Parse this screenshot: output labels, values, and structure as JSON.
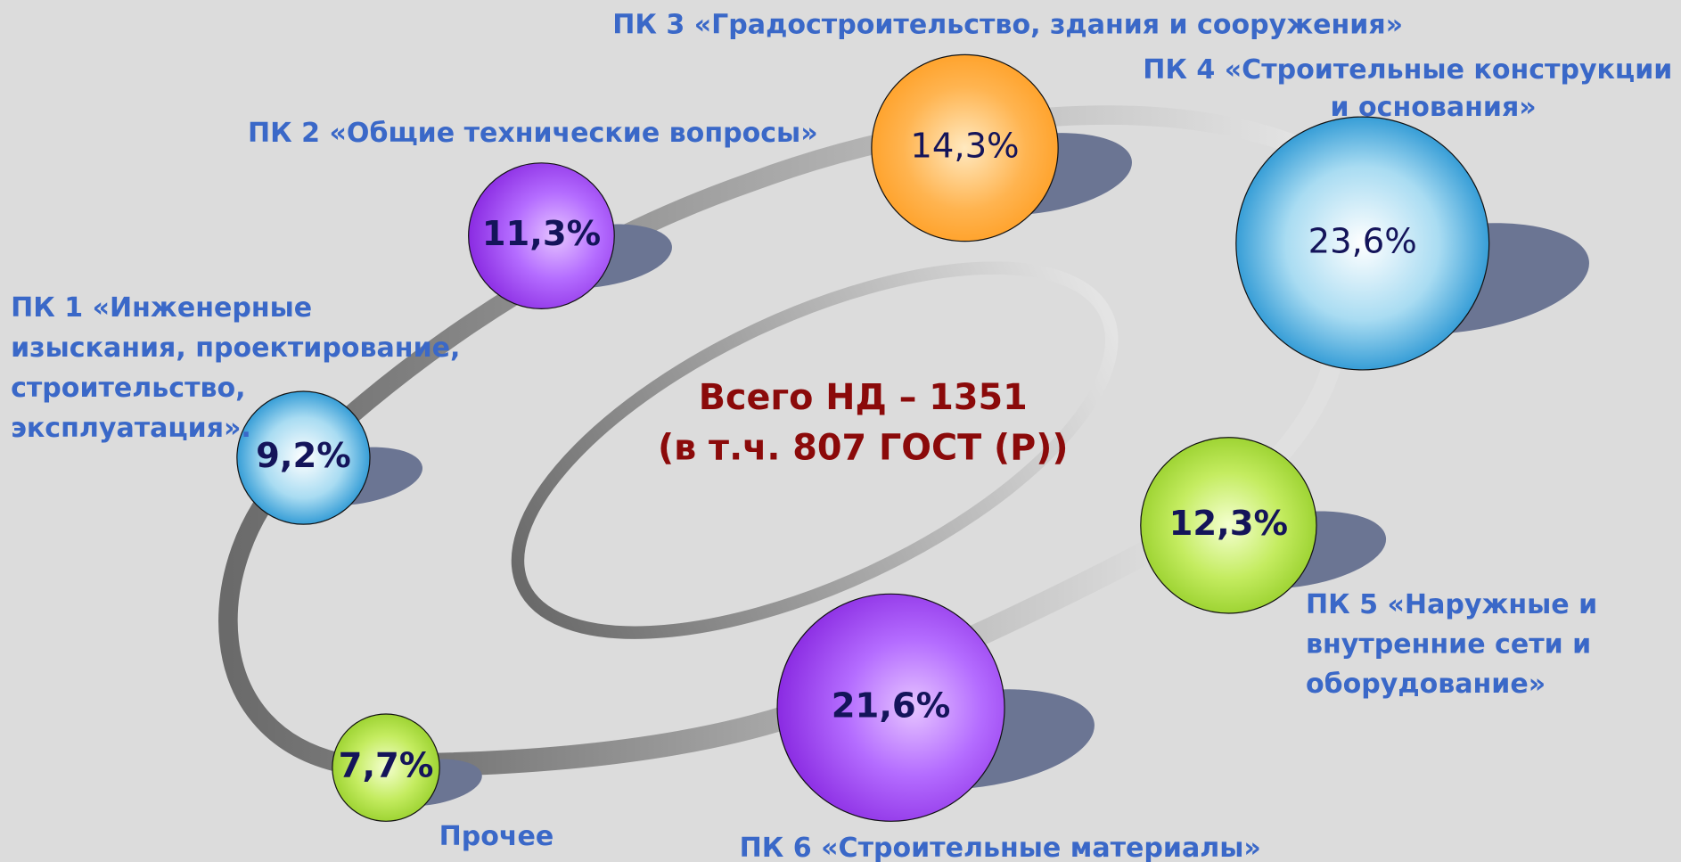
{
  "center": {
    "lines": [
      "Всего  НД – 1351",
      "(в т.ч. 807 ГОСТ (Р))"
    ]
  },
  "nodes": [
    {
      "label_lines": [
        "ПК 1 «Инженерные",
        "изыскания, проектирование,",
        "строительство,",
        "эксплуатация»."
      ],
      "value": "9,2%"
    },
    {
      "label_lines": [
        "ПК 2 «Общие технические вопросы»"
      ],
      "value": "11,3%"
    },
    {
      "label_lines": [
        "ПК 3 «Градостроительство, здания и сооружения»"
      ],
      "value": "14,3%"
    },
    {
      "label_lines": [
        "ПК 4 «Строительные конструкции",
        "и основания»"
      ],
      "value": "23,6%"
    },
    {
      "label_lines": [
        "ПК 5 «Наружные и",
        "внутренние сети и",
        "оборудование»"
      ],
      "value": "12,3%"
    },
    {
      "label_lines": [
        "ПК 6 «Строительные материалы»"
      ],
      "value": "21,6%"
    },
    {
      "label_lines": [
        "Прочее"
      ],
      "value": "7,7%"
    }
  ]
}
